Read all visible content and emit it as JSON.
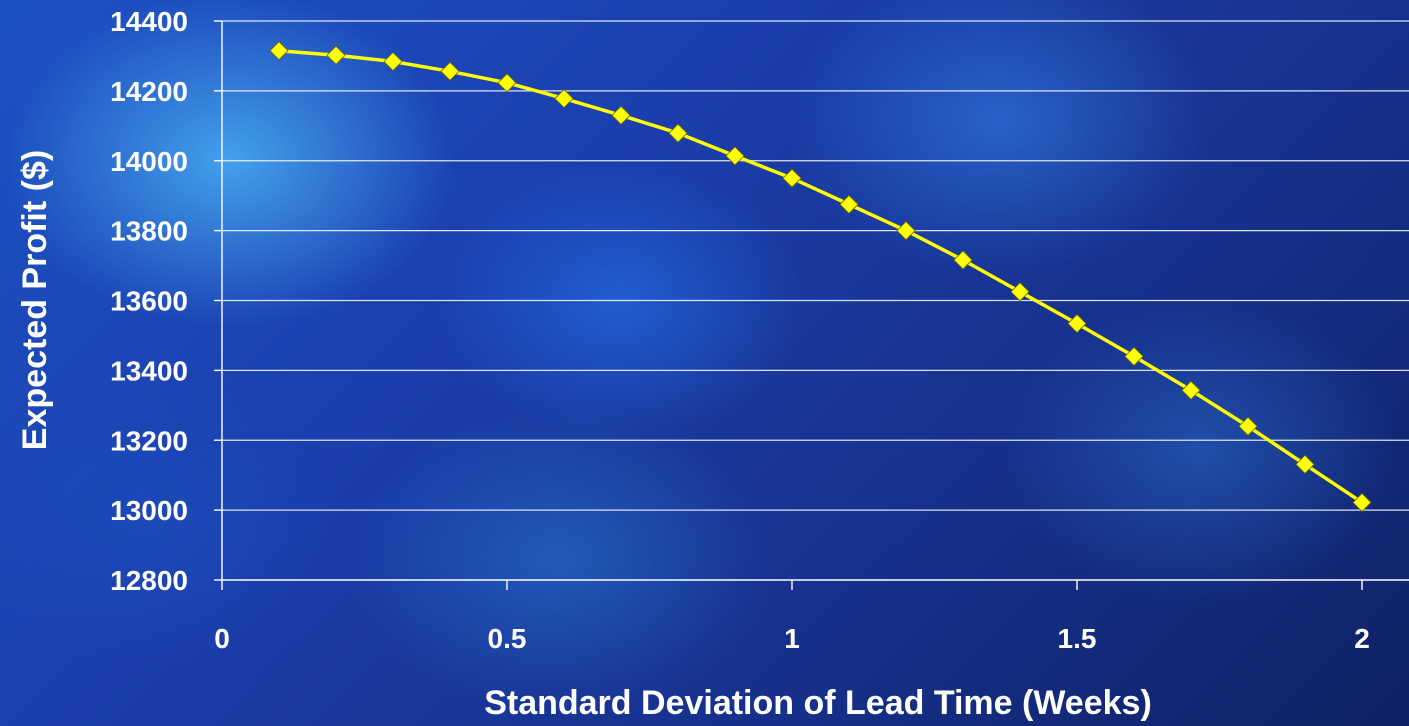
{
  "chart_data": {
    "type": "line",
    "title": "",
    "xlabel": "Standard Deviation of Lead Time (Weeks)",
    "ylabel": "Expected Profit ($)",
    "xlim": [
      0,
      2
    ],
    "ylim": [
      12800,
      14400
    ],
    "x_ticks": [
      0,
      0.5,
      1,
      1.5,
      2
    ],
    "x_tick_labels": [
      "0",
      "0.5",
      "1",
      "1.5",
      "2"
    ],
    "y_ticks": [
      12800,
      13000,
      13200,
      13400,
      13600,
      13800,
      14000,
      14200,
      14400
    ],
    "y_tick_labels": [
      "12800",
      "13000",
      "13200",
      "13400",
      "13600",
      "13800",
      "14000",
      "14200",
      "14400"
    ],
    "grid": "horizontal",
    "legend": "none",
    "series": [
      {
        "color": "#ffff00",
        "marker": "diamond",
        "x": [
          0.1,
          0.2,
          0.3,
          0.4,
          0.5,
          0.6,
          0.7,
          0.8,
          0.9,
          1.0,
          1.1,
          1.2,
          1.3,
          1.4,
          1.5,
          1.6,
          1.7,
          1.8,
          1.9,
          2.0
        ],
        "y": [
          14315,
          14302,
          14284,
          14256,
          14223,
          14178,
          14130,
          14079,
          14014,
          13950,
          13875,
          13800,
          13716,
          13625,
          13534,
          13440,
          13343,
          13240,
          13131,
          13022
        ]
      }
    ]
  }
}
